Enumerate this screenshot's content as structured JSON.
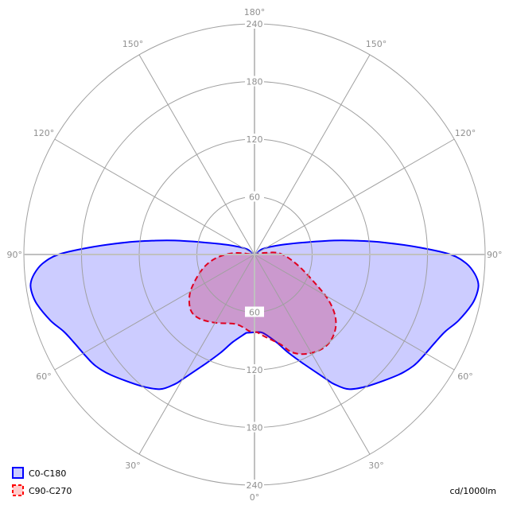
{
  "chart_data": {
    "type": "polar",
    "unit_label": "cd/1000lm",
    "radial_range": [
      0,
      240
    ],
    "radial_ticks": [
      "60",
      "120",
      "180",
      "240"
    ],
    "angle_ticks": [
      {
        "angle": 180,
        "label": "180°"
      },
      {
        "angle": 150,
        "label": "150°"
      },
      {
        "angle": 120,
        "label": "120°"
      },
      {
        "angle": 90,
        "label": "90°"
      },
      {
        "angle": 60,
        "label": "60°"
      },
      {
        "angle": 30,
        "label": "30°"
      },
      {
        "angle": 0,
        "label": "0°"
      }
    ],
    "grid": true,
    "legend_placement": "bottom-left",
    "series": [
      {
        "name": "C0-C180",
        "stroke": "#0000ff",
        "fill": "#ccccff",
        "dashed": false,
        "right": [
          [
            0,
            81
          ],
          [
            6,
            82
          ],
          [
            14,
            94
          ],
          [
            19,
            108
          ],
          [
            24,
            124
          ],
          [
            30,
            150
          ],
          [
            31.5,
            158
          ],
          [
            35,
            171
          ],
          [
            41,
            181
          ],
          [
            50,
            195
          ],
          [
            55,
            202
          ],
          [
            59,
            205
          ],
          [
            64,
            209
          ],
          [
            68,
            214
          ],
          [
            72,
            223
          ],
          [
            77,
            232
          ],
          [
            80,
            235
          ],
          [
            82.5,
            235
          ],
          [
            85,
            230
          ],
          [
            87.5,
            221
          ],
          [
            90,
            204
          ],
          [
            92.5,
            171
          ],
          [
            95.5,
            133
          ],
          [
            98,
            104
          ],
          [
            100,
            84
          ],
          [
            103,
            57
          ],
          [
            110,
            29
          ],
          [
            125,
            10
          ],
          [
            180,
            0
          ]
        ],
        "left": [
          [
            0,
            81
          ],
          [
            6,
            82
          ],
          [
            14,
            94
          ],
          [
            19,
            108
          ],
          [
            24,
            124
          ],
          [
            30,
            150
          ],
          [
            31.5,
            158
          ],
          [
            35,
            171
          ],
          [
            41,
            181
          ],
          [
            50,
            195
          ],
          [
            55,
            202
          ],
          [
            59,
            205
          ],
          [
            64,
            209
          ],
          [
            68,
            214
          ],
          [
            72,
            223
          ],
          [
            77,
            232
          ],
          [
            80,
            235
          ],
          [
            82.5,
            235
          ],
          [
            85,
            230
          ],
          [
            87.5,
            221
          ],
          [
            90,
            204
          ],
          [
            92.5,
            171
          ],
          [
            95.5,
            133
          ],
          [
            98,
            104
          ],
          [
            100,
            84
          ],
          [
            103,
            57
          ],
          [
            110,
            29
          ],
          [
            125,
            10
          ],
          [
            180,
            0
          ]
        ]
      },
      {
        "name": "C90-C270",
        "stroke": "#e00020",
        "fill": "#ffcccc",
        "dashed": true,
        "right": [
          [
            0,
            81
          ],
          [
            2,
            81
          ],
          [
            7,
            86
          ],
          [
            16,
            97
          ],
          [
            21,
            109
          ],
          [
            28,
            117
          ],
          [
            37,
            121
          ],
          [
            45,
            117
          ],
          [
            52,
            107
          ],
          [
            58.5,
            90
          ],
          [
            66,
            66
          ],
          [
            77,
            45
          ],
          [
            92,
            27
          ],
          [
            99,
            11
          ],
          [
            180,
            0
          ]
        ],
        "left": [
          [
            0,
            81
          ],
          [
            4,
            80
          ],
          [
            15,
            75
          ],
          [
            30,
            82
          ],
          [
            41,
            88
          ],
          [
            49,
            88
          ],
          [
            58.5,
            79
          ],
          [
            68,
            65
          ],
          [
            78,
            51
          ],
          [
            87,
            36
          ],
          [
            95,
            19
          ],
          [
            180,
            0
          ]
        ]
      }
    ]
  }
}
